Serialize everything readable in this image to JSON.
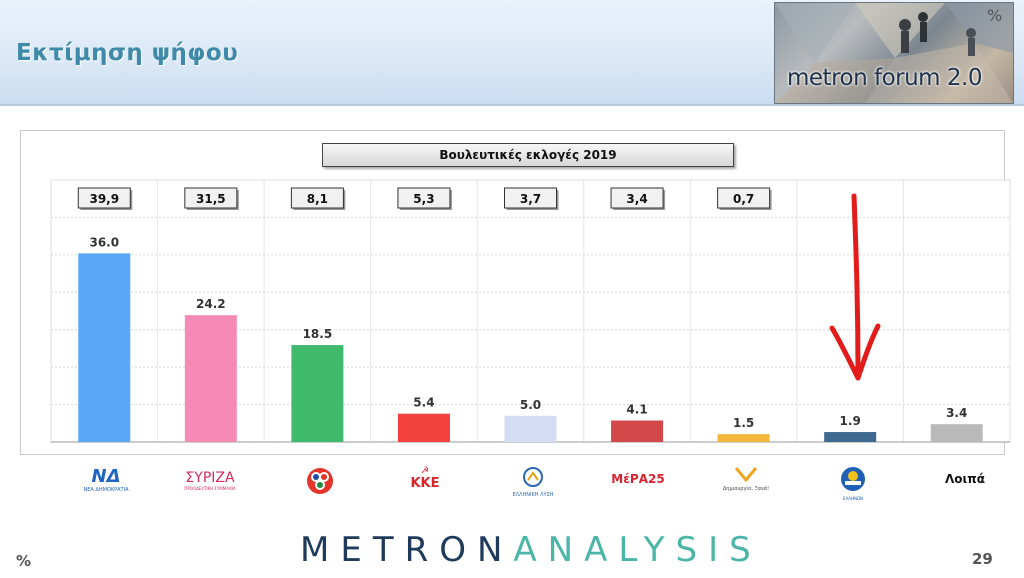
{
  "header": {
    "title": "Εκτίμηση ψήφου",
    "forum_label": "metron forum 2.0",
    "percent_mark": "%"
  },
  "chart_data": {
    "type": "bar",
    "categories": [
      "ΝΔ",
      "ΣΥΡΙΖΑ",
      "ΚΙΝΑΛ",
      "ΚΚΕ",
      "ΕΛΛΗΝΙΚΗ ΛΥΣΗ",
      "ΜέΡΑ25",
      "Δημιουργία, Ξανά!",
      "Ελλήνων Συνέλευση",
      "Λοιπά"
    ],
    "series": [
      {
        "values": [
          36.0,
          24.2,
          18.5,
          5.4,
          5.0,
          4.1,
          1.5,
          1.9,
          3.4
        ]
      }
    ],
    "value_labels": [
      "36.0",
      "24.2",
      "18.5",
      "5.4",
      "5.0",
      "4.1",
      "1.5",
      "1.9",
      "3.4"
    ],
    "reference_title": "Βουλευτικές εκλογές 2019",
    "reference_labels": [
      "39,9",
      "31,5",
      "8,1",
      "5,3",
      "3,7",
      "3,4",
      "0,7",
      "",
      ""
    ],
    "colors": [
      "#5aa8f5",
      "#f58bb4",
      "#3fba6c",
      "#f2403f",
      "#d3dcf2",
      "#d34848",
      "#f2b73c",
      "#3e6a91",
      "#b9b9b9"
    ],
    "ylim": [
      0,
      50
    ],
    "grid": true,
    "annotation": "red-arrow-down"
  },
  "logos": {
    "nd": "ΝΔ",
    "nd_sub": "ΝΕΑ ΔΗΜΟΚΡΑΤΙΑ",
    "syriza": "ΣΥΡΙΖΑ",
    "syriza_sub": "ΠΡΟΟΔΕΥΤΙΚΗ ΣΥΜΜΑΧΙΑ",
    "kke": "ΚΚΕ",
    "elliniki_lysi": "ΕΛΛΗΝΙΚΗ ΛΥΣΗ",
    "mera25": "ΜέΡΑ25",
    "dimiourgia": "Δημιουργία, Ξανά!",
    "ellinon": "ΕΛΛΗΝΩΝ",
    "loipa": "Λοιπά"
  },
  "footer": {
    "brand_part1": "METRON",
    "brand_part2": "ANALYSIS",
    "percent_mark": "%",
    "page_number": "29"
  }
}
